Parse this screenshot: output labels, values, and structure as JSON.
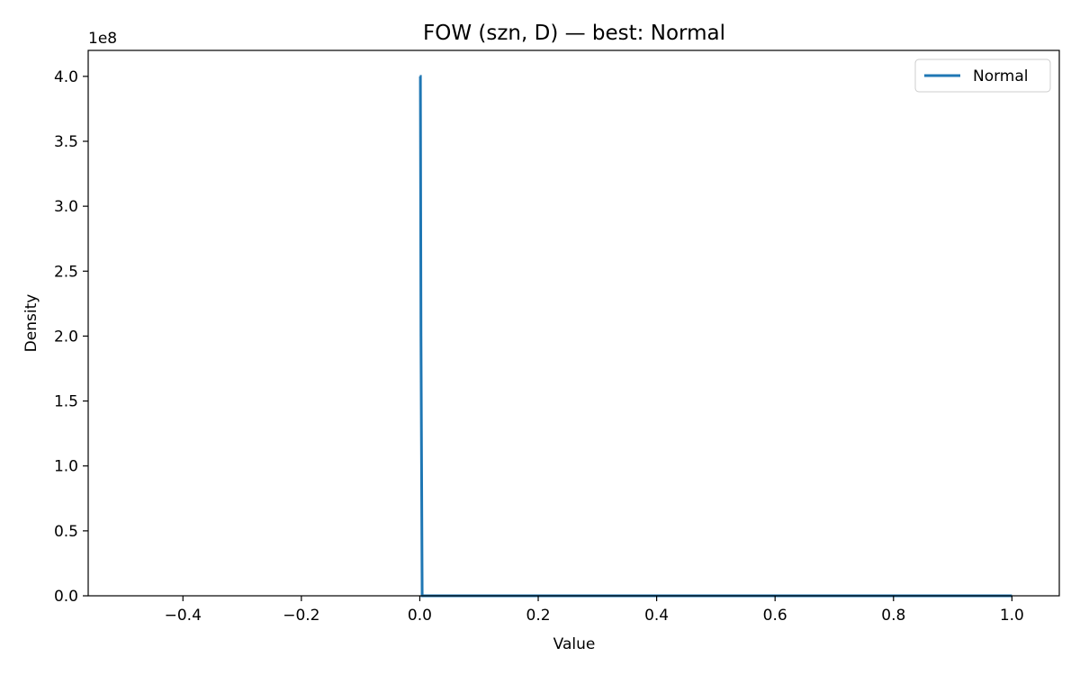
{
  "chart_data": {
    "type": "line",
    "title": "FOW (szn, D) — best: Normal",
    "xlabel": "Value",
    "ylabel": "Density",
    "y_offset_label": "1e8",
    "xlim": [
      -0.56,
      1.08
    ],
    "ylim": [
      0,
      4.2
    ],
    "x_ticks": [
      -0.4,
      -0.2,
      0.0,
      0.2,
      0.4,
      0.6,
      0.8,
      1.0
    ],
    "x_tick_labels": [
      "−0.4",
      "−0.2",
      "0.0",
      "0.2",
      "0.4",
      "0.6",
      "0.8",
      "1.0"
    ],
    "y_ticks": [
      0.0,
      0.5,
      1.0,
      1.5,
      2.0,
      2.5,
      3.0,
      3.5,
      4.0
    ],
    "y_tick_labels": [
      "0.0",
      "0.5",
      "1.0",
      "1.5",
      "2.0",
      "2.5",
      "3.0",
      "3.5",
      "4.0"
    ],
    "grid": false,
    "legend_position": "top-right",
    "series": [
      {
        "name": "Normal",
        "color": "#1f77b4",
        "x": [
          0.0,
          0.001,
          0.002,
          0.004,
          0.006,
          0.01,
          0.2,
          0.4,
          0.6,
          0.8,
          1.0
        ],
        "y": [
          4.0,
          4.0,
          2.0,
          0.0,
          0.0,
          0.0,
          0.0,
          0.0,
          0.0,
          0.0,
          0.0
        ]
      }
    ]
  }
}
